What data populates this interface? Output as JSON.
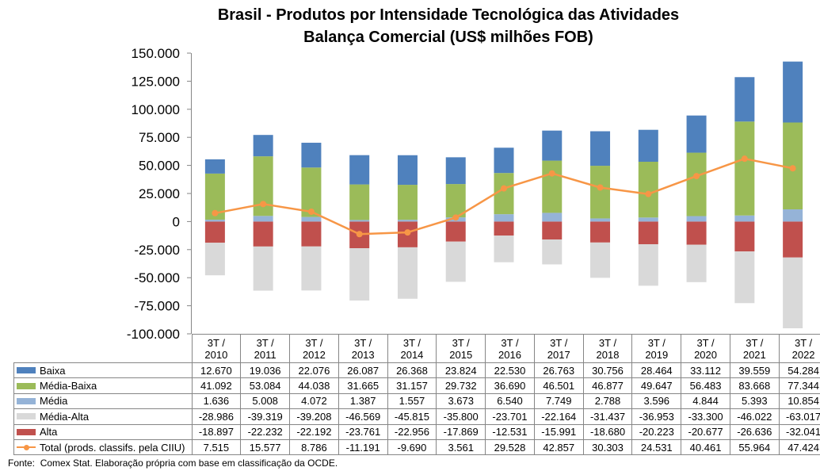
{
  "chart_data": {
    "type": "bar",
    "stacked": true,
    "title": "Brasil - Produtos por Intensidade Tecnológica das Atividades",
    "subtitle": "Balança Comercial (US$ milhões FOB)",
    "categories": [
      "3T / 2010",
      "3T / 2011",
      "3T / 2012",
      "3T / 2013",
      "3T / 2014",
      "3T / 2015",
      "3T / 2016",
      "3T / 2017",
      "3T / 2018",
      "3T / 2019",
      "3T / 2020",
      "3T / 2021",
      "3T / 2022"
    ],
    "ylim": [
      -100000,
      150000
    ],
    "yticks": [
      150000,
      125000,
      100000,
      75000,
      50000,
      25000,
      0,
      -25000,
      -50000,
      -75000,
      -100000
    ],
    "grid": false,
    "legend": "bottom",
    "data_table": true,
    "series": [
      {
        "name": "Baixa",
        "kind": "bar",
        "color": "#4F81BD",
        "values": [
          12670,
          19036,
          22076,
          26087,
          26368,
          23824,
          22530,
          26763,
          30756,
          28464,
          33112,
          39559,
          54284
        ]
      },
      {
        "name": "Média-Baixa",
        "kind": "bar",
        "color": "#9BBB59",
        "values": [
          41092,
          53084,
          44038,
          31665,
          31157,
          29732,
          36690,
          46501,
          46877,
          49647,
          56483,
          83668,
          77344
        ]
      },
      {
        "name": "Média",
        "kind": "bar",
        "color": "#95B3D7",
        "values": [
          1636,
          5008,
          4072,
          1387,
          1557,
          3673,
          6540,
          7749,
          2788,
          3596,
          4844,
          5393,
          10854
        ]
      },
      {
        "name": "Média-Alta",
        "kind": "bar",
        "color": "#D9D9D9",
        "values": [
          -28986,
          -39319,
          -39208,
          -46569,
          -45815,
          -35800,
          -23701,
          -22164,
          -31437,
          -36953,
          -33300,
          -46022,
          -63017
        ]
      },
      {
        "name": "Alta",
        "kind": "bar",
        "color": "#C0504D",
        "values": [
          -18897,
          -22232,
          -22192,
          -23761,
          -22956,
          -17869,
          -12531,
          -15991,
          -18680,
          -20223,
          -20677,
          -26636,
          -32041
        ]
      },
      {
        "name": "Total (prods. classifs. pela CIIU)",
        "kind": "line",
        "color": "#F79646",
        "marker": "circle",
        "values": [
          7515,
          15577,
          8786,
          -11191,
          -9690,
          3561,
          29528,
          42857,
          30303,
          24531,
          40461,
          55964,
          47424
        ]
      }
    ]
  },
  "footer": {
    "source": "Fonte:  Comex Stat. Elaboração própria com base em classificação da OCDE."
  }
}
